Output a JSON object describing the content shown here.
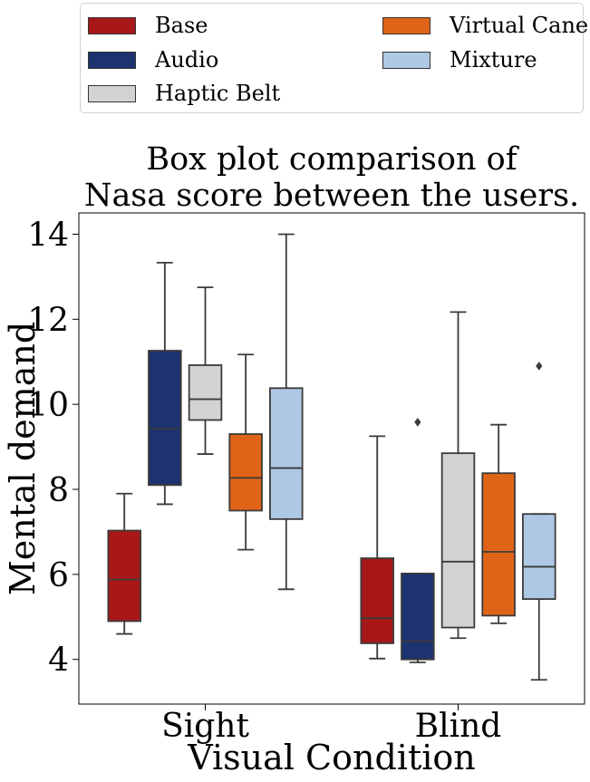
{
  "chart_data": {
    "type": "box",
    "title": [
      "Box plot comparison of",
      "Nasa score between the users."
    ],
    "xlabel": "Visual Condition",
    "ylabel": "Mental demand",
    "categories": [
      "Sight",
      "Blind"
    ],
    "ylim": [
      2.95,
      14.5
    ],
    "yticks": [
      4,
      6,
      8,
      10,
      12,
      14
    ],
    "grid": false,
    "legend_position": "top (above plot)",
    "series": [
      {
        "name": "Base",
        "color": "#a81818",
        "boxes": [
          {
            "category": "Sight",
            "min": 4.6,
            "q1": 4.9,
            "median": 5.88,
            "q3": 7.03,
            "max": 7.9,
            "outliers": []
          },
          {
            "category": "Blind",
            "min": 4.02,
            "q1": 4.38,
            "median": 4.97,
            "q3": 6.38,
            "max": 9.25,
            "outliers": []
          }
        ]
      },
      {
        "name": "Audio",
        "color": "#1c3370",
        "boxes": [
          {
            "category": "Sight",
            "min": 7.65,
            "q1": 8.1,
            "median": 9.42,
            "q3": 11.26,
            "max": 13.33,
            "outliers": []
          },
          {
            "category": "Blind",
            "min": 3.93,
            "q1": 4.0,
            "median": 4.43,
            "q3": 6.02,
            "max": 6.02,
            "outliers": [
              9.58
            ]
          }
        ]
      },
      {
        "name": "Haptic Belt",
        "color": "#d3d3d3",
        "boxes": [
          {
            "category": "Sight",
            "min": 8.83,
            "q1": 9.63,
            "median": 10.12,
            "q3": 10.92,
            "max": 12.75,
            "outliers": []
          },
          {
            "category": "Blind",
            "min": 4.5,
            "q1": 4.75,
            "median": 6.3,
            "q3": 8.85,
            "max": 12.17,
            "outliers": []
          }
        ]
      },
      {
        "name": "Virtual Cane",
        "color": "#e06418",
        "boxes": [
          {
            "category": "Sight",
            "min": 6.58,
            "q1": 7.5,
            "median": 8.27,
            "q3": 9.3,
            "max": 11.17,
            "outliers": []
          },
          {
            "category": "Blind",
            "min": 4.85,
            "q1": 5.03,
            "median": 6.53,
            "q3": 8.38,
            "max": 9.52,
            "outliers": []
          }
        ]
      },
      {
        "name": "Mixture",
        "color": "#aec8e4",
        "boxes": [
          {
            "category": "Sight",
            "min": 5.65,
            "q1": 7.3,
            "median": 8.5,
            "q3": 10.38,
            "max": 14.0,
            "outliers": []
          },
          {
            "category": "Blind",
            "min": 3.52,
            "q1": 5.42,
            "median": 6.18,
            "q3": 7.42,
            "max": 7.42,
            "outliers": [
              10.9
            ]
          }
        ]
      }
    ]
  }
}
